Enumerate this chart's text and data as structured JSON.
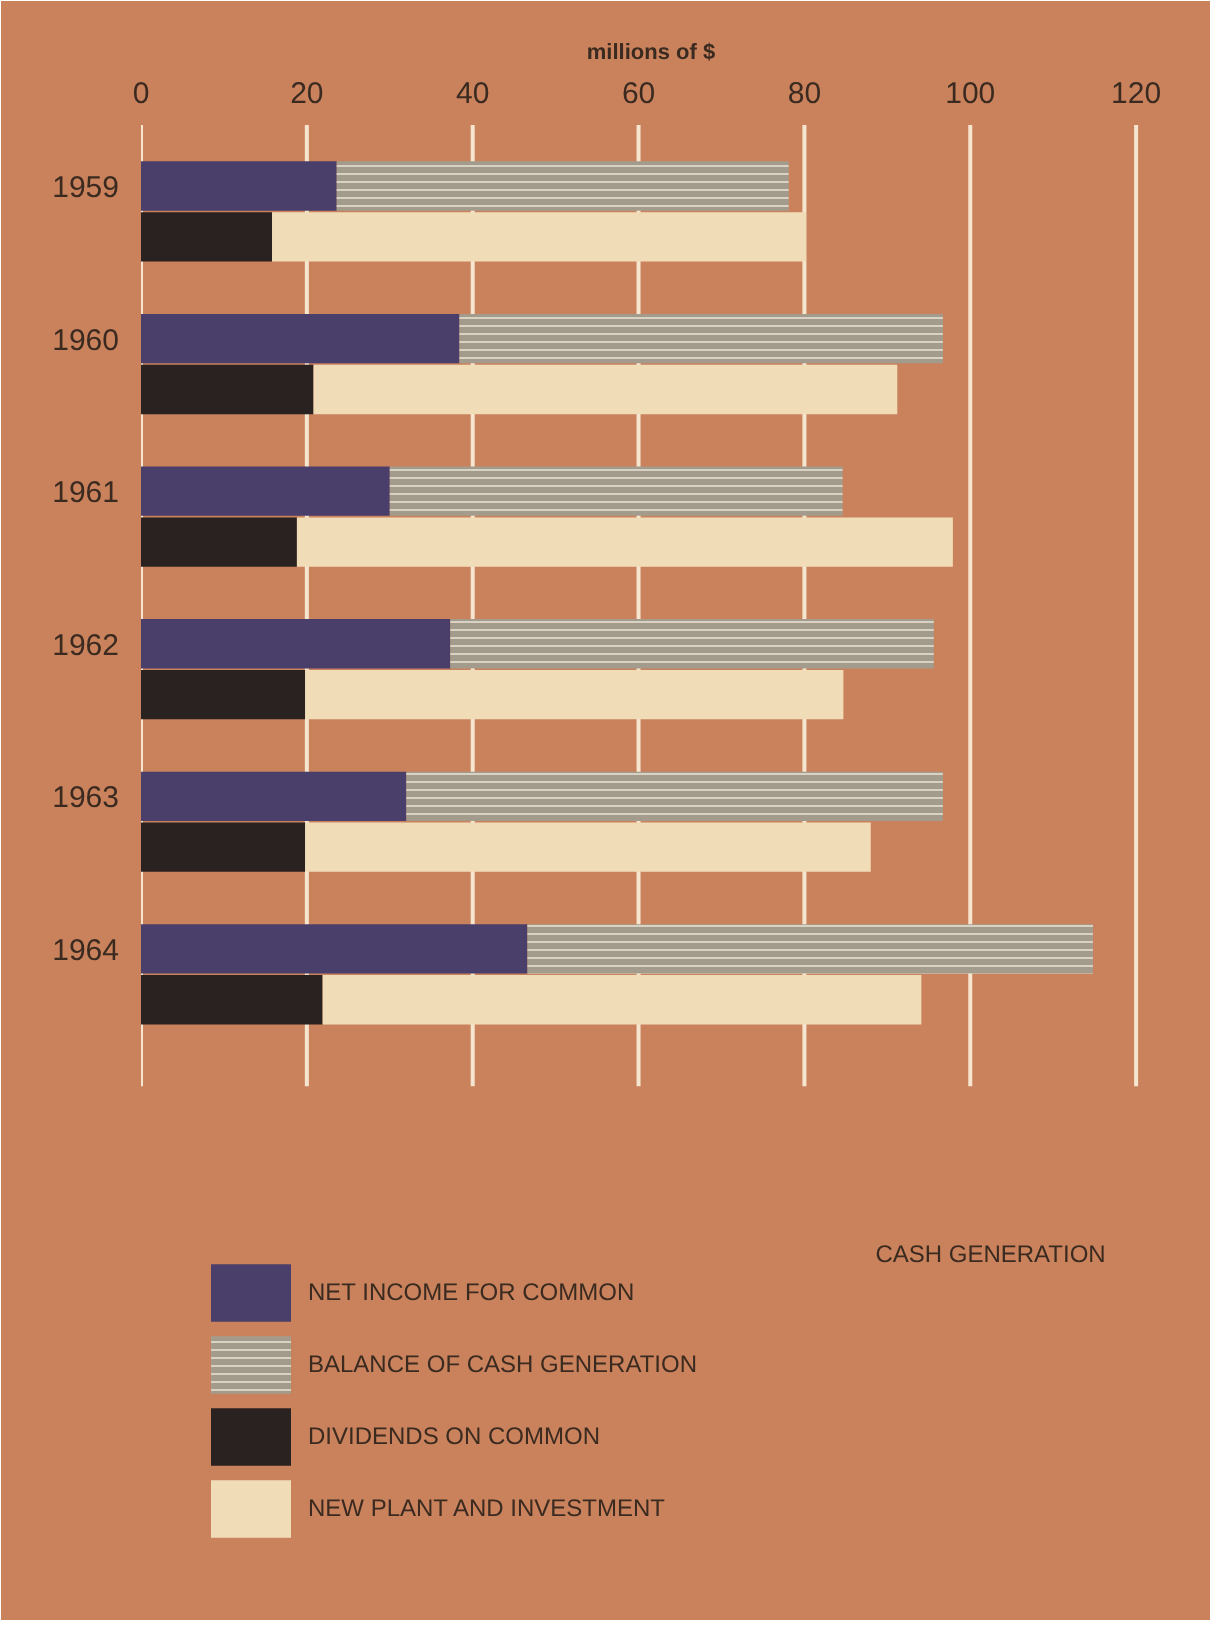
{
  "chart_data": {
    "type": "bar",
    "orientation": "horizontal",
    "stacked": true,
    "xlabel": "millions of $",
    "categories": [
      "1959",
      null,
      "1960",
      null,
      "1961",
      null,
      "1962",
      null,
      "1963",
      null,
      "1964",
      null
    ],
    "series": [
      {
        "name": "NET INCOME FOR COMMON",
        "color": "#4a3f6b",
        "values": [
          23.6,
          null,
          38.4,
          null,
          30.0,
          null,
          37.3,
          null,
          32.0,
          null,
          46.6,
          null
        ]
      },
      {
        "name": "BALANCE OF CASH GENERATION",
        "color": "#a39c8c",
        "values": [
          54.5,
          null,
          58.3,
          null,
          54.6,
          null,
          58.3,
          null,
          64.7,
          null,
          68.2,
          null
        ]
      },
      {
        "name": "DIVIDENDS ON COMMON",
        "color": "#2a2220",
        "values": [
          null,
          15.8,
          null,
          20.8,
          null,
          18.8,
          null,
          19.8,
          null,
          19.8,
          null,
          21.9
        ]
      },
      {
        "name": "NEW PLANT AND INVESTMENT",
        "color": "#f1dcb8",
        "values": [
          null,
          64.4,
          null,
          70.4,
          null,
          79.1,
          null,
          64.9,
          null,
          68.2,
          null,
          72.2
        ]
      }
    ],
    "xlim": [
      0,
      123
    ],
    "xticks": [
      0,
      20,
      40,
      60,
      80,
      100,
      120
    ],
    "grid": "x",
    "legend": "bottom left",
    "annotations": [
      "CASH GENERATION"
    ]
  }
}
